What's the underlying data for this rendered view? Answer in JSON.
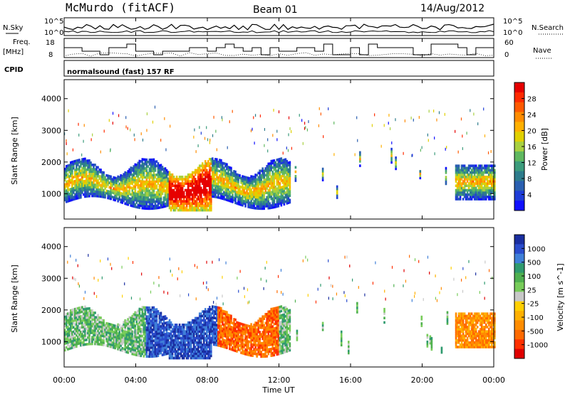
{
  "header": {
    "station": "McMurdo (fitACF)",
    "beam": "Beam 01",
    "date": "14/Aug/2012"
  },
  "top_panels": {
    "nsky_label": "N.Sky",
    "nsearch_label": "N.Search",
    "noise_ticks_left": [
      "10^5",
      "10^0"
    ],
    "noise_ticks_right": [
      "10^5",
      "10^0"
    ],
    "freq_label_1": "Freq.",
    "freq_label_2": "[MHz]",
    "freq_ticks": [
      "18",
      "8"
    ],
    "nave_label": "Nave",
    "nave_ticks": [
      "60",
      "0"
    ],
    "cpid_label": "CPID",
    "cpid_text": "normalsound (fast) 157 RF"
  },
  "chart_data": [
    {
      "type": "heatmap",
      "panel": "power",
      "ylabel": "Slant Range [km]",
      "xlabel": "",
      "ylim": [
        200,
        4600
      ],
      "yticks": [
        "4000",
        "3000",
        "2000",
        "1000"
      ],
      "xlim_hours": [
        0,
        24
      ],
      "colorbar_label": "Power [dB]",
      "colorbar_ticks": [
        "28",
        "24",
        "20",
        "16",
        "12",
        "8",
        "4"
      ],
      "colorbar_colors": [
        "#e60000",
        "#ff2a00",
        "#ff5a00",
        "#ff8c00",
        "#ffb000",
        "#e0d000",
        "#a8d040",
        "#60b860",
        "#3c9c7c",
        "#2e7c8c",
        "#2a5fb0",
        "#1e3cd8",
        "#1010ff"
      ],
      "echo_regions": [
        {
          "t0": 0.2,
          "t1": 12.6,
          "r0": 800,
          "r1": 2100,
          "level": 14
        },
        {
          "t0": 5.8,
          "t1": 8.2,
          "r0": 500,
          "r1": 1700,
          "level": 26
        },
        {
          "t0": 21.8,
          "t1": 24.0,
          "r0": 800,
          "r1": 1900,
          "level": 18
        }
      ]
    },
    {
      "type": "heatmap",
      "panel": "velocity",
      "ylabel": "Slant Range [km]",
      "xlabel": "Time UT",
      "ylim": [
        200,
        4600
      ],
      "yticks": [
        "4000",
        "3000",
        "2000",
        "1000"
      ],
      "x_tick_labels": [
        "00:00",
        "04:00",
        "08:00",
        "12:00",
        "16:00",
        "20:00",
        "00:00"
      ],
      "colorbar_label": "Velocity [m s^-1]",
      "colorbar_ticks": [
        "1000",
        "500",
        "100",
        "25",
        "-25",
        "-100",
        "-500",
        "-1000"
      ],
      "colorbar_colors": [
        "#1a2ea0",
        "#2a4ccc",
        "#3f7fd8",
        "#2f9a6e",
        "#4fb04f",
        "#78cc5a",
        "#c8c8c8",
        "#ffd000",
        "#ffb000",
        "#ff8c00",
        "#ff6a00",
        "#ff3000",
        "#e00000"
      ]
    }
  ]
}
